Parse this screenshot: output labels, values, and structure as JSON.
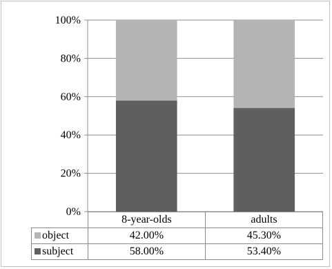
{
  "chart_data": {
    "type": "bar",
    "stacked": true,
    "percent": true,
    "categories": [
      "8-year-olds",
      "adults"
    ],
    "series": [
      {
        "name": "subject",
        "values": [
          58.0,
          53.4
        ],
        "labels": [
          "58.00%",
          "53.40%"
        ],
        "color": "#5f5f5f"
      },
      {
        "name": "object",
        "values": [
          42.0,
          45.3
        ],
        "labels": [
          "42.00%",
          "45.30%"
        ],
        "color": "#b4b4b4"
      }
    ],
    "ylim": [
      0,
      100
    ],
    "yticks": [
      "0%",
      "20%",
      "40%",
      "60%",
      "80%",
      "100%"
    ],
    "grid": true,
    "legend": "data-table",
    "title": "",
    "xlabel": "",
    "ylabel": ""
  }
}
